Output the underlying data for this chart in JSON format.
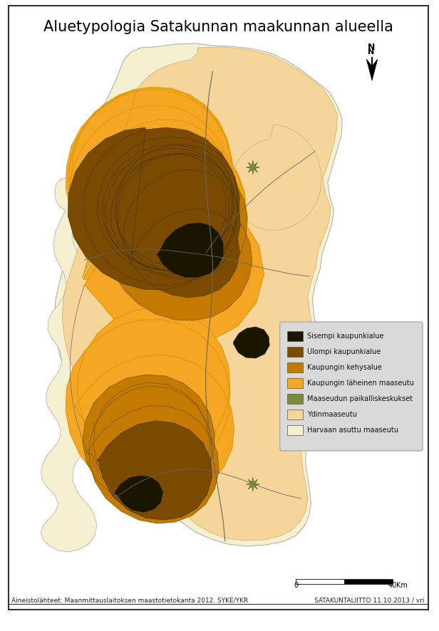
{
  "title": "Aluetypologia Satakunnan maakunnan alueella",
  "title_fontsize": 15,
  "background_color": "#ffffff",
  "footer_left": "Aineistolähteet: Maanmittauslaitoksen maastotietokanta 2012. SYKE/YKR",
  "footer_right": "SATAKUNTALIITTO 11.10.2013 / vri",
  "footer_fontsize": 6.5,
  "legend_items": [
    {
      "label": "Sisempi kaupunkialue",
      "color": "#1a1500"
    },
    {
      "label": "Ulompi kaupunkialue",
      "color": "#7a4a00"
    },
    {
      "label": "Kaupungin kehysalue",
      "color": "#c47a00"
    },
    {
      "label": "Kaupungin läheinen maaseutu",
      "color": "#f5a623"
    },
    {
      "label": "Maaseudun paikalliskeskukset",
      "color": "#7a8c3c"
    },
    {
      "label": "Ydinmaaseutu",
      "color": "#f5d59a"
    },
    {
      "label": "Harvaan asuttu maaseutu",
      "color": "#f5f0d0"
    }
  ],
  "colors": {
    "harvaan": "#f5f0d0",
    "ydin": "#f5d59a",
    "lahein": "#f5a623",
    "kehys": "#c47a00",
    "ulompi": "#7a4a00",
    "sisempi": "#1a1500",
    "paikallis": "#7a8c3c"
  }
}
